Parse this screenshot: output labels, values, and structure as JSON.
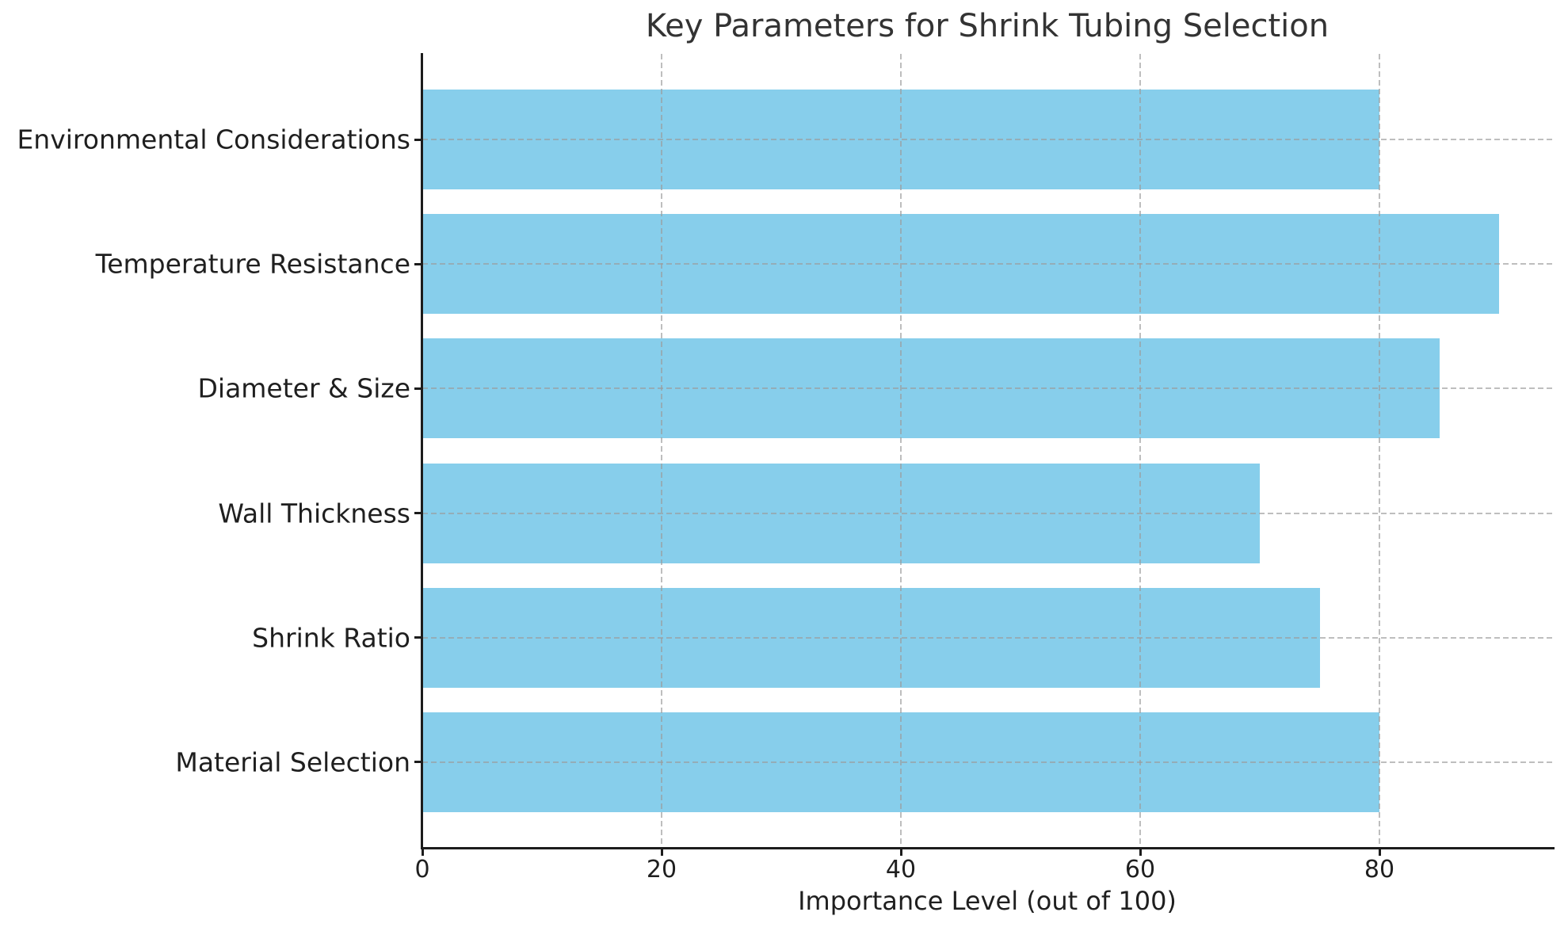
{
  "chart_data": {
    "type": "bar",
    "orientation": "horizontal",
    "title": "Key Parameters for Shrink Tubing Selection",
    "xlabel": "Importance Level (out of 100)",
    "ylabel": "",
    "categories": [
      "Environmental Considerations",
      "Temperature Resistance",
      "Diameter & Size",
      "Wall Thickness",
      "Shrink Ratio",
      "Material Selection"
    ],
    "values": [
      80,
      90,
      85,
      70,
      75,
      80
    ],
    "xticks": [
      0,
      20,
      40,
      60,
      80
    ],
    "xlim": [
      0,
      94.5
    ],
    "grid": "dashed, both axes, drawn over bars",
    "legend": "none",
    "bar_color": "#87CEEB",
    "grid_color": "#9b9b9b",
    "axis_color": "#1c1c1c",
    "text_color": "#1f1f1f",
    "title_color": "#333333",
    "background_color": "#ffffff"
  }
}
